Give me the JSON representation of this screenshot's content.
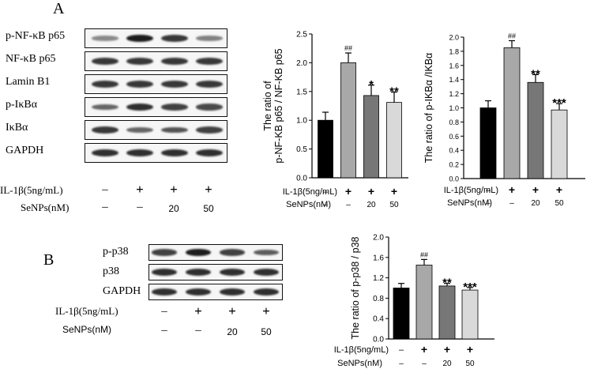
{
  "panel_a": {
    "letter": "A",
    "blot_rows": [
      "p-NF-κB p65",
      "NF-κB p65",
      "Lamin B1",
      "p-IκBα",
      "IκBα",
      "GAPDH"
    ],
    "blot_intensity": [
      [
        0.35,
        0.95,
        0.8,
        0.4
      ],
      [
        0.8,
        0.8,
        0.8,
        0.8
      ],
      [
        0.8,
        0.8,
        0.8,
        0.8
      ],
      [
        0.55,
        0.85,
        0.75,
        0.7
      ],
      [
        0.8,
        0.55,
        0.65,
        0.75
      ],
      [
        0.85,
        0.85,
        0.85,
        0.85
      ]
    ],
    "il_label": "IL-1β(5ng/mL)",
    "il_signs": [
      "–",
      "+",
      "+",
      "+"
    ],
    "se_label": "SeNPs(nM)",
    "se_signs": [
      "–",
      "–",
      "20",
      "50"
    ]
  },
  "panel_b": {
    "letter": "B",
    "blot_rows": [
      "p-p38",
      "p38",
      "GAPDH"
    ],
    "blot_intensity": [
      [
        0.75,
        0.95,
        0.75,
        0.6
      ],
      [
        0.85,
        0.85,
        0.85,
        0.85
      ],
      [
        0.85,
        0.85,
        0.85,
        0.85
      ]
    ],
    "il_label": "IL-1β(5ng/mL)",
    "il_signs": [
      "–",
      "+",
      "+",
      "+"
    ],
    "se_label": "SeNPs(nM)",
    "se_signs": [
      "–",
      "–",
      "20",
      "50"
    ]
  },
  "chart_data": [
    {
      "type": "bar",
      "ylabel_line1": "The ratio of",
      "ylabel_line2": "p-NF-KB p65 / NF-KB p65",
      "ylim": [
        0,
        2.5
      ],
      "yticks": [
        0,
        0.5,
        1.0,
        1.5,
        2.0,
        2.5
      ],
      "ytick_labels": [
        "0.0",
        "0.5",
        "1.0",
        "1.5",
        "2.0",
        "2.5"
      ],
      "values": [
        1.0,
        2.0,
        1.43,
        1.31
      ],
      "errors": [
        0.14,
        0.17,
        0.18,
        0.18
      ],
      "annotations": [
        "",
        "##",
        "*",
        "**"
      ],
      "colors": [
        "#000000",
        "#a8a8a8",
        "#777777",
        "#d9d9d9"
      ],
      "il_label": "IL-1β(5ng/mL)",
      "il_signs": [
        "–",
        "+",
        "+",
        "+"
      ],
      "se_label": "SeNPs(nM)",
      "se_signs": [
        "–",
        "–",
        "20",
        "50"
      ],
      "grid": false
    },
    {
      "type": "bar",
      "ylabel_line1": "The ratio of p-IKBα /IKBα",
      "ylabel_line2": "",
      "ylim": [
        0,
        2.0
      ],
      "yticks": [
        0,
        0.2,
        0.4,
        0.6,
        0.8,
        1.0,
        1.2,
        1.4,
        1.6,
        1.8,
        2.0
      ],
      "ytick_labels": [
        "0.0",
        "0.2",
        "0.4",
        "0.6",
        "0.8",
        "1.0",
        "1.2",
        "1.4",
        "1.6",
        "1.8",
        "2.0"
      ],
      "values": [
        1.0,
        1.85,
        1.36,
        0.97
      ],
      "errors": [
        0.1,
        0.1,
        0.11,
        0.09
      ],
      "annotations": [
        "",
        "##",
        "**",
        "***"
      ],
      "colors": [
        "#000000",
        "#a8a8a8",
        "#777777",
        "#d9d9d9"
      ],
      "il_label": "IL-1β(5ng/mL)",
      "il_signs": [
        "–",
        "+",
        "+",
        "+"
      ],
      "se_label": "SeNPs(nM)",
      "se_signs": [
        "–",
        "–",
        "20",
        "50"
      ],
      "grid": false
    },
    {
      "type": "bar",
      "ylabel_line1": "The ratio of  p-p38 / p38",
      "ylabel_line2": "",
      "ylim": [
        0,
        2.0
      ],
      "yticks": [
        0,
        0.4,
        0.8,
        1.2,
        1.6,
        2.0
      ],
      "ytick_labels": [
        "0.0",
        "0.4",
        "0.8",
        "1.2",
        "1.6",
        "2.0"
      ],
      "values": [
        1.0,
        1.45,
        1.04,
        0.96
      ],
      "errors": [
        0.09,
        0.11,
        0.05,
        0.05
      ],
      "annotations": [
        "",
        "##",
        "**",
        "***"
      ],
      "colors": [
        "#000000",
        "#a8a8a8",
        "#777777",
        "#d9d9d9"
      ],
      "il_label": "IL-1β(5ng/mL)",
      "il_signs": [
        "–",
        "+",
        "+",
        "+"
      ],
      "se_label": "SeNPs(nM)",
      "se_signs": [
        "–",
        "–",
        "20",
        "50"
      ],
      "grid": false
    }
  ]
}
